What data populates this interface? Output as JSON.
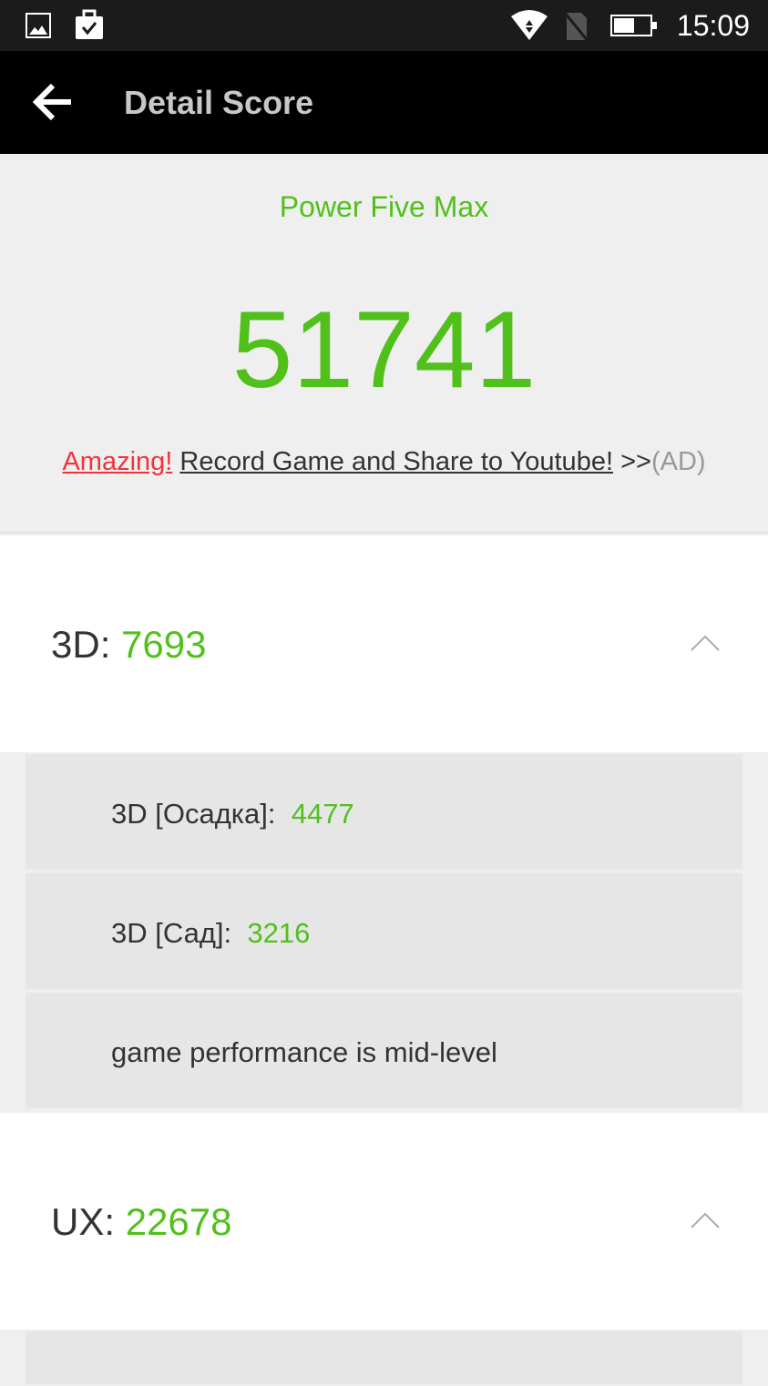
{
  "status_bar": {
    "time": "15:09",
    "icons": [
      "gallery-icon",
      "clipboard-check-icon",
      "wifi-icon",
      "no-sim-icon",
      "battery-icon"
    ]
  },
  "app_bar": {
    "title": "Detail Score",
    "back_icon": "arrow-left-icon"
  },
  "hero": {
    "device": "Power Five Max",
    "score": "51741",
    "ad_prefix": "Amazing!",
    "ad_link": "Record Game and Share to Youtube!",
    "ad_arrows": ">>",
    "ad_tag": "(AD)"
  },
  "sections": [
    {
      "label": "3D: ",
      "value": "7693",
      "items": [
        {
          "label": "3D [Осадка]:",
          "value": "4477"
        },
        {
          "label": "3D [Сад]:",
          "value": "3216"
        },
        {
          "label": "game performance is mid-level",
          "value": ""
        }
      ]
    },
    {
      "label": "UX: ",
      "value": "22678"
    }
  ],
  "colors": {
    "accent": "#52c01b",
    "ad_red": "#f2333b"
  }
}
